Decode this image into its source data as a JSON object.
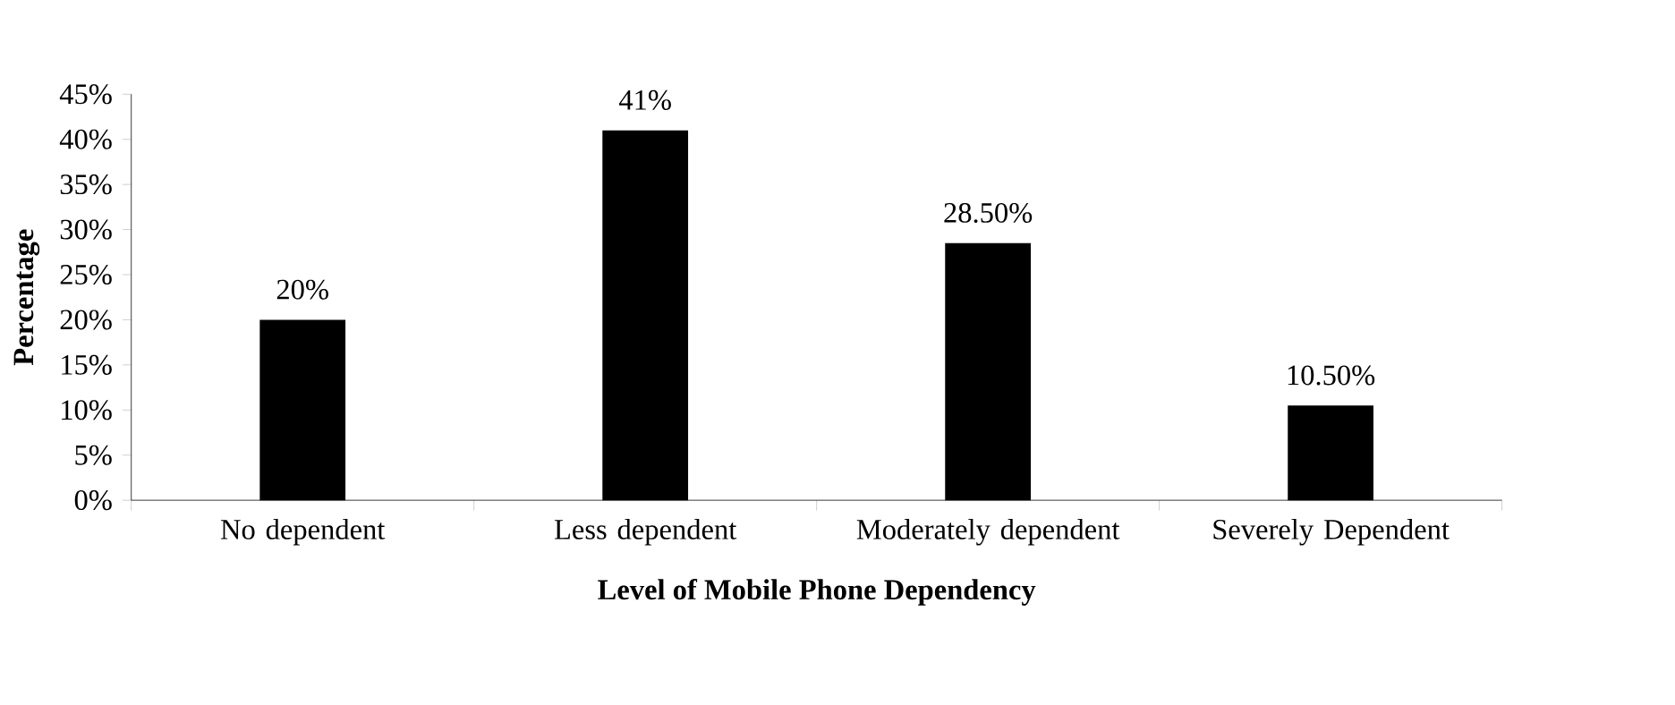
{
  "chart_data": {
    "type": "bar",
    "xlabel": "**Level of Mobile Phone Dependency**",
    "ylabel": "**Percentage**",
    "categories": [
      "No dependent",
      "Less dependent",
      "Moderately dependent",
      "Severely Dependent"
    ],
    "values": [
      20,
      41,
      28.5,
      10.5
    ],
    "value_labels": [
      "20%",
      "41%",
      "28.50%",
      "10.50%"
    ],
    "color": "#000000",
    "ylim": [
      0,
      45
    ],
    "yticks": [
      {
        "value": 0,
        "label": "0%"
      },
      {
        "value": 5,
        "label": "5%"
      },
      {
        "value": 10,
        "label": "10%"
      },
      {
        "value": 15,
        "label": "15%"
      },
      {
        "value": 20,
        "label": "20%"
      },
      {
        "value": 25,
        "label": "25%"
      },
      {
        "value": 30,
        "label": "30%"
      },
      {
        "value": 35,
        "label": "35%"
      },
      {
        "value": 40,
        "label": "40%"
      },
      {
        "value": 45,
        "label": "45%"
      }
    ]
  }
}
